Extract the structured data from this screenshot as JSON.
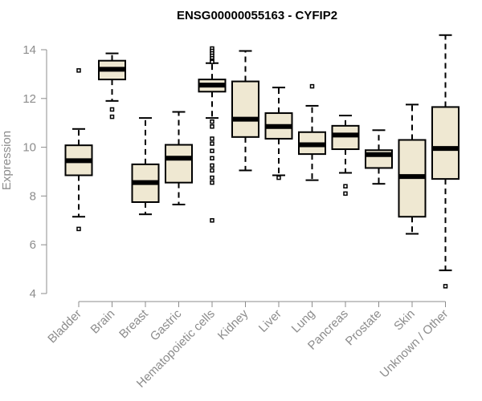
{
  "chart_data": {
    "type": "boxplot",
    "title": "ENSG00000055163 - CYFIP2",
    "xlabel": "",
    "ylabel": "Expression",
    "ylim": [
      4,
      14.6
    ],
    "yticks": [
      4,
      6,
      8,
      10,
      12,
      14
    ],
    "grid": false,
    "box_fill": "#efe8d2",
    "categories": [
      "Bladder",
      "Brain",
      "Breast",
      "Gastric",
      "Hematopoietic cells",
      "Kidney",
      "Liver",
      "Lung",
      "Pancreas",
      "Prostate",
      "Skin",
      "Unknown / Other"
    ],
    "boxes": [
      {
        "category": "Bladder",
        "whisker_low": 7.15,
        "q1": 8.85,
        "median": 9.45,
        "q3": 10.08,
        "whisker_high": 10.75,
        "outliers": [
          13.15,
          6.65
        ]
      },
      {
        "category": "Brain",
        "whisker_low": 11.9,
        "q1": 12.78,
        "median": 13.2,
        "q3": 13.55,
        "whisker_high": 13.85,
        "outliers": [
          11.55,
          11.25
        ]
      },
      {
        "category": "Breast",
        "whisker_low": 7.25,
        "q1": 7.75,
        "median": 8.55,
        "q3": 9.3,
        "whisker_high": 11.2,
        "outliers": []
      },
      {
        "category": "Gastric",
        "whisker_low": 7.65,
        "q1": 8.55,
        "median": 9.55,
        "q3": 10.1,
        "whisker_high": 11.45,
        "outliers": []
      },
      {
        "category": "Hematopoietic cells",
        "whisker_low": 11.2,
        "q1": 12.28,
        "median": 12.55,
        "q3": 12.78,
        "whisker_high": 13.45,
        "outliers": [
          14.05,
          13.95,
          13.85,
          13.75,
          13.65,
          13.55,
          13.5,
          11.05,
          10.85,
          10.35,
          10.15,
          9.85,
          9.55,
          9.25,
          9.05,
          8.75,
          8.55,
          7.0
        ]
      },
      {
        "category": "Kidney",
        "whisker_low": 9.05,
        "q1": 10.42,
        "median": 11.15,
        "q3": 12.7,
        "whisker_high": 13.95,
        "outliers": []
      },
      {
        "category": "Liver",
        "whisker_low": 8.85,
        "q1": 10.35,
        "median": 10.85,
        "q3": 11.4,
        "whisker_high": 12.45,
        "outliers": [
          8.75
        ]
      },
      {
        "category": "Lung",
        "whisker_low": 8.65,
        "q1": 9.72,
        "median": 10.1,
        "q3": 10.62,
        "whisker_high": 11.7,
        "outliers": [
          12.5
        ]
      },
      {
        "category": "Pancreas",
        "whisker_low": 8.95,
        "q1": 9.92,
        "median": 10.5,
        "q3": 10.88,
        "whisker_high": 11.3,
        "outliers": [
          8.4,
          8.1
        ]
      },
      {
        "category": "Prostate",
        "whisker_low": 8.5,
        "q1": 9.15,
        "median": 9.7,
        "q3": 9.88,
        "whisker_high": 10.7,
        "outliers": []
      },
      {
        "category": "Skin",
        "whisker_low": 6.45,
        "q1": 7.15,
        "median": 8.8,
        "q3": 10.3,
        "whisker_high": 11.75,
        "outliers": []
      },
      {
        "category": "Unknown / Other",
        "whisker_low": 4.95,
        "q1": 8.7,
        "median": 9.95,
        "q3": 11.65,
        "whisker_high": 14.6,
        "outliers": [
          4.3
        ]
      }
    ]
  }
}
